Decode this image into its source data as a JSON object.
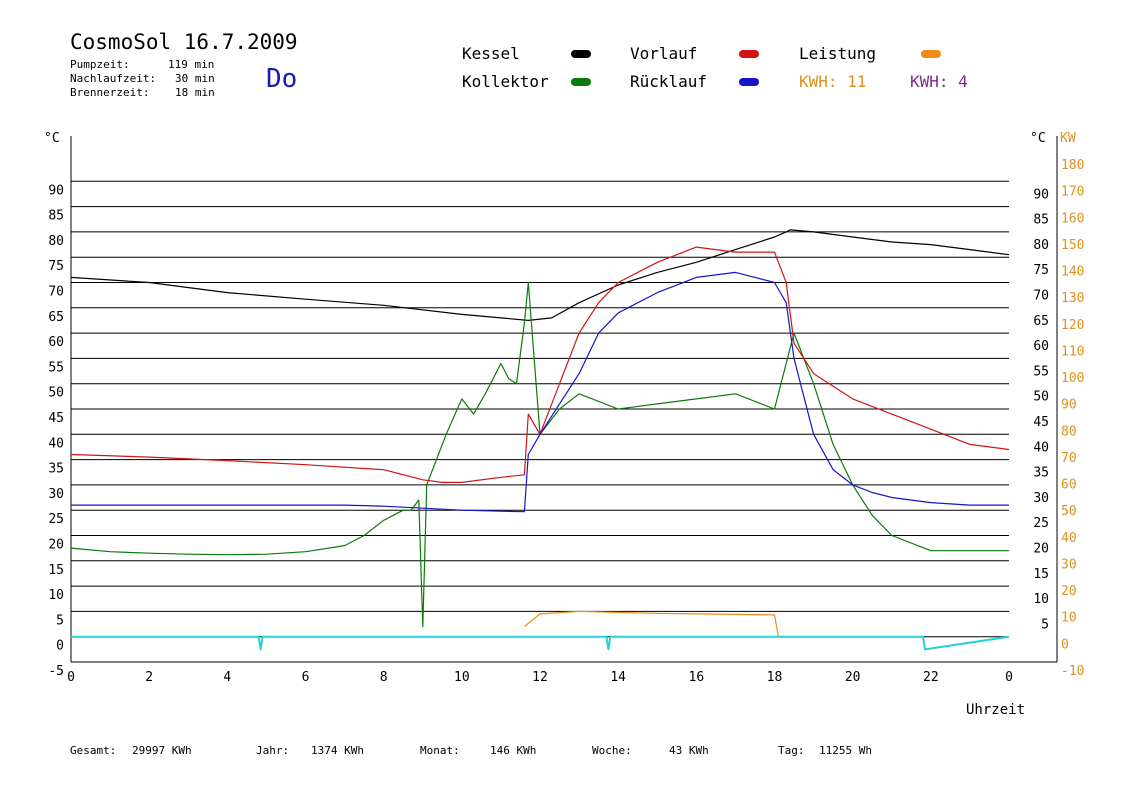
{
  "header": {
    "title": "CosmoSol 16.7.2009",
    "pumpzeit_label": "Pumpzeit:",
    "pumpzeit_value": "119 min",
    "nachlauf_label": "Nachlaufzeit:",
    "nachlauf_value": "30 min",
    "brenner_label": "Brennerzeit:",
    "brenner_value": "18 min",
    "weekday": "Do"
  },
  "legend": {
    "kessel": "Kessel",
    "kollektor": "Kollektor",
    "vorlauf": "Vorlauf",
    "ruecklauf": "Rücklauf",
    "leistung": "Leistung",
    "kwh_orange": "KWH: 11",
    "kwh_purple": "KWH: 4"
  },
  "footer": {
    "gesamt_label": "Gesamt:",
    "gesamt_value": "29997 KWh",
    "jahr_label": "Jahr:",
    "jahr_value": "1374 KWh",
    "monat_label": "Monat:",
    "monat_value": "146 KWh",
    "woche_label": "Woche:",
    "woche_value": "43 KWh",
    "tag_label": "Tag:",
    "tag_value": "11255 Wh"
  },
  "colors": {
    "kessel": "#000000",
    "kollektor": "#0a7a0a",
    "vorlauf": "#d21414",
    "ruecklauf": "#1414c8",
    "leistung": "#f08c14",
    "kwh_purple": "#7a2a8c",
    "pump": "#22d0e0",
    "right_axis": "#e0901e"
  },
  "chart_data": {
    "type": "line",
    "xlabel": "Uhrzeit",
    "ylabel_left": "°C",
    "ylabel_right_c": "°C",
    "ylabel_right_kw": "KW",
    "xlim": [
      0,
      24
    ],
    "ylim": [
      -5,
      95
    ],
    "ylim_right_kw": [
      -10,
      180
    ],
    "grid": true,
    "x_ticks": [
      "0",
      "2",
      "4",
      "6",
      "8",
      "10",
      "12",
      "14",
      "16",
      "18",
      "20",
      "22",
      "0"
    ],
    "y_ticks_left": [
      "-5",
      "0",
      "5",
      "10",
      "15",
      "20",
      "25",
      "30",
      "35",
      "40",
      "45",
      "50",
      "55",
      "60",
      "65",
      "70",
      "75",
      "80",
      "85",
      "90"
    ],
    "y_ticks_right_c": [
      "5",
      "10",
      "15",
      "20",
      "25",
      "30",
      "35",
      "40",
      "45",
      "50",
      "55",
      "60",
      "65",
      "70",
      "75",
      "80",
      "85",
      "90"
    ],
    "y_ticks_right_kw": [
      "-10",
      "0",
      "10",
      "20",
      "30",
      "40",
      "50",
      "60",
      "70",
      "80",
      "90",
      "100",
      "110",
      "120",
      "130",
      "140",
      "150",
      "160",
      "170",
      "180"
    ],
    "series": [
      {
        "name": "Kessel",
        "x": [
          0,
          2,
          4,
          6,
          8,
          10,
          11,
          11.7,
          12.3,
          13,
          14,
          15,
          16,
          17,
          18,
          18.3,
          18.4,
          19,
          20,
          21,
          22,
          23,
          24
        ],
        "y": [
          71,
          70,
          68,
          66.7,
          65.5,
          63.7,
          63,
          62.5,
          63,
          66,
          69.5,
          72,
          74,
          76.5,
          79,
          80,
          80.4,
          80,
          79,
          78,
          77.5,
          76.5,
          75.5
        ]
      },
      {
        "name": "Kollektor",
        "x": [
          0,
          1,
          2,
          3,
          4,
          5,
          6,
          7,
          7.5,
          8,
          8.5,
          8.7,
          8.9,
          9.0,
          9.1,
          9.3,
          9.6,
          10,
          10.3,
          10.6,
          11,
          11.2,
          11.4,
          11.6,
          11.7,
          12,
          12.5,
          13,
          14,
          15,
          16,
          17,
          18,
          18.5,
          19,
          19.5,
          20,
          20.5,
          21,
          22,
          23,
          24
        ],
        "y": [
          17.5,
          16.8,
          16.5,
          16.3,
          16.2,
          16.3,
          16.8,
          18,
          20,
          23,
          25,
          25,
          27,
          2,
          30,
          34,
          40,
          47,
          44,
          48,
          54,
          51,
          50,
          62,
          70,
          40,
          45,
          48,
          45,
          46,
          47,
          48,
          45,
          60,
          50,
          38,
          30,
          24,
          20,
          17,
          17,
          17
        ]
      },
      {
        "name": "Vorlauf",
        "x": [
          0,
          2,
          4,
          6,
          8,
          9,
          9.5,
          10,
          11,
          11.6,
          11.7,
          12,
          12.5,
          13,
          13.5,
          14,
          15,
          16,
          17,
          18,
          18.3,
          18.5,
          19,
          20,
          21,
          22,
          23,
          24
        ],
        "y": [
          36,
          35.5,
          34.8,
          34,
          33,
          31,
          30.5,
          30.5,
          31.5,
          32,
          44,
          40,
          50,
          60,
          66,
          70,
          74,
          77,
          76,
          76,
          70,
          58,
          52,
          47,
          44,
          41,
          38,
          37
        ]
      },
      {
        "name": "Rücklauf",
        "x": [
          0,
          2,
          4,
          6,
          7,
          8,
          9,
          10,
          11,
          11.6,
          11.7,
          12,
          12.5,
          13,
          13.5,
          14,
          15,
          16,
          17,
          18,
          18.3,
          18.5,
          19,
          19.5,
          20,
          20.5,
          21,
          22,
          23,
          24
        ],
        "y": [
          26,
          26,
          26,
          26,
          26,
          25.8,
          25.4,
          25,
          24.8,
          24.7,
          36,
          40,
          46,
          52,
          60,
          64,
          68,
          71,
          72,
          70,
          66,
          55,
          40,
          33,
          30,
          28.5,
          27.5,
          26.5,
          26,
          26
        ]
      },
      {
        "name": "Leistung",
        "x": [
          11.6,
          12,
          13,
          14,
          15,
          16,
          17,
          18,
          18.1
        ],
        "y": [
          2,
          4.5,
          5,
          4.8,
          4.6,
          4.5,
          4.4,
          4.3,
          0
        ]
      },
      {
        "name": "Pumpe",
        "x": [
          0,
          4.8,
          4.85,
          4.9,
          13.7,
          13.75,
          13.8,
          21.8,
          21.85,
          24
        ],
        "y": [
          0,
          0,
          -2.5,
          0,
          0,
          -2.5,
          0,
          0,
          -2.5,
          0
        ]
      }
    ]
  }
}
